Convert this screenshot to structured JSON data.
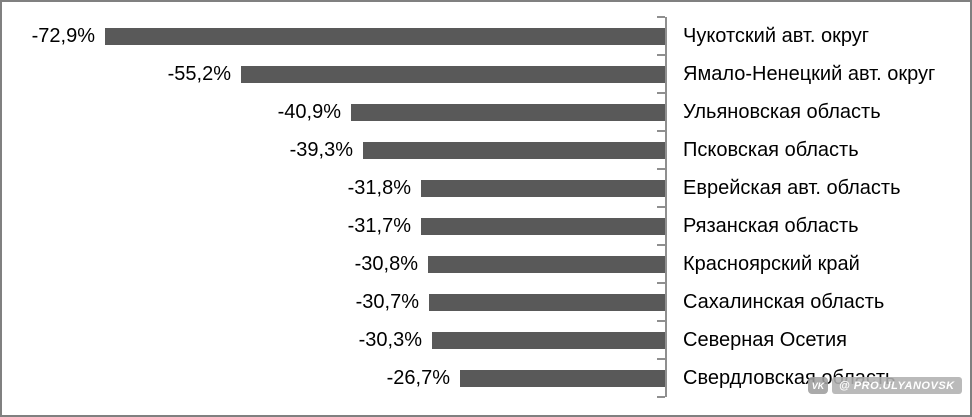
{
  "chart_data": {
    "type": "bar",
    "orientation": "horizontal",
    "title": "",
    "xlabel": "",
    "ylabel": "",
    "categories": [
      "Чукотский авт. округ",
      "Ямало-Ненецкий авт. округ",
      "Ульяновская область",
      "Псковская область",
      "Еврейская авт. область",
      "Рязанская область",
      "Красноярский край",
      "Сахалинская область",
      "Северная Осетия",
      "Свердловская область"
    ],
    "values": [
      -72.9,
      -55.2,
      -40.9,
      -39.3,
      -31.8,
      -31.7,
      -30.8,
      -30.7,
      -30.3,
      -26.7
    ],
    "value_labels": [
      "-72,9%",
      "-55,2%",
      "-40,9%",
      "-39,3%",
      "-31,8%",
      "-31,7%",
      "-30,8%",
      "-30,7%",
      "-30,3%",
      "-26,7%"
    ],
    "xlim": [
      -75,
      0
    ],
    "grid": false,
    "legend": "none",
    "bar_color": "#595959",
    "axis_color": "#8f8f8f",
    "text_color": "#000000",
    "frame_border_color": "#808080"
  },
  "watermark": {
    "vk_label": "VK",
    "text": "@ PRO.ULYANOVSK"
  }
}
